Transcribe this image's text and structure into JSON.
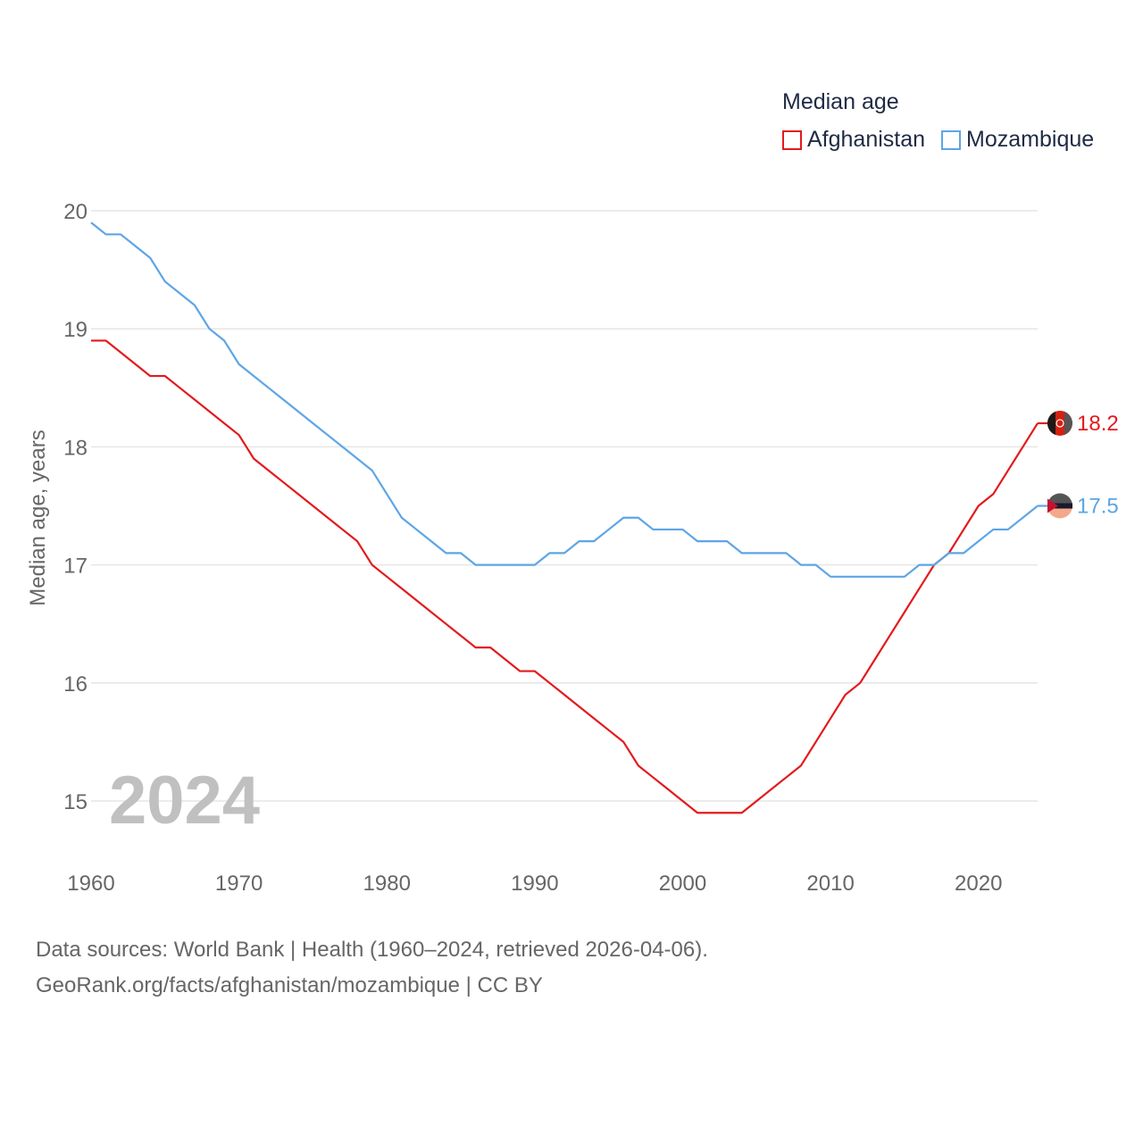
{
  "chart_data": {
    "type": "line",
    "legend_title": "Median age",
    "ylabel": "Median age, years",
    "xlabel": "",
    "year_label": "2024",
    "xlim": [
      1960,
      2024
    ],
    "ylim": [
      14.5,
      20.1
    ],
    "x_ticks": [
      1960,
      1970,
      1980,
      1990,
      2000,
      2010,
      2020
    ],
    "y_ticks": [
      15,
      16,
      17,
      18,
      19,
      20
    ],
    "grid": true,
    "legend_position": "top-right",
    "x": [
      1960,
      1961,
      1962,
      1963,
      1964,
      1965,
      1966,
      1967,
      1968,
      1969,
      1970,
      1971,
      1972,
      1973,
      1974,
      1975,
      1976,
      1977,
      1978,
      1979,
      1980,
      1981,
      1982,
      1983,
      1984,
      1985,
      1986,
      1987,
      1988,
      1989,
      1990,
      1991,
      1992,
      1993,
      1994,
      1995,
      1996,
      1997,
      1998,
      1999,
      2000,
      2001,
      2002,
      2003,
      2004,
      2005,
      2006,
      2007,
      2008,
      2009,
      2010,
      2011,
      2012,
      2013,
      2014,
      2015,
      2016,
      2017,
      2018,
      2019,
      2020,
      2021,
      2022,
      2023,
      2024
    ],
    "series": [
      {
        "name": "Afghanistan",
        "color": "#e31a1c",
        "end_label": "18.2",
        "values": [
          18.9,
          18.9,
          18.8,
          18.7,
          18.6,
          18.6,
          18.5,
          18.4,
          18.3,
          18.2,
          18.1,
          17.9,
          17.8,
          17.7,
          17.6,
          17.5,
          17.4,
          17.3,
          17.2,
          17.0,
          16.9,
          16.8,
          16.7,
          16.6,
          16.5,
          16.4,
          16.3,
          16.3,
          16.2,
          16.1,
          16.1,
          16.0,
          15.9,
          15.8,
          15.7,
          15.6,
          15.5,
          15.3,
          15.2,
          15.1,
          15.0,
          14.9,
          14.9,
          14.9,
          14.9,
          15.0,
          15.1,
          15.2,
          15.3,
          15.5,
          15.7,
          15.9,
          16.0,
          16.2,
          16.4,
          16.6,
          16.8,
          17.0,
          17.1,
          17.3,
          17.5,
          17.6,
          17.8,
          18.0,
          18.2
        ]
      },
      {
        "name": "Mozambique",
        "color": "#5da5e6",
        "end_label": "17.5",
        "values": [
          19.9,
          19.8,
          19.8,
          19.7,
          19.6,
          19.4,
          19.3,
          19.2,
          19.0,
          18.9,
          18.7,
          18.6,
          18.5,
          18.4,
          18.3,
          18.2,
          18.1,
          18.0,
          17.9,
          17.8,
          17.6,
          17.4,
          17.3,
          17.2,
          17.1,
          17.1,
          17.0,
          17.0,
          17.0,
          17.0,
          17.0,
          17.1,
          17.1,
          17.2,
          17.2,
          17.3,
          17.4,
          17.4,
          17.3,
          17.3,
          17.3,
          17.2,
          17.2,
          17.2,
          17.1,
          17.1,
          17.1,
          17.1,
          17.0,
          17.0,
          16.9,
          16.9,
          16.9,
          16.9,
          16.9,
          16.9,
          17.0,
          17.0,
          17.1,
          17.1,
          17.2,
          17.3,
          17.3,
          17.4,
          17.5
        ]
      }
    ]
  },
  "footer": {
    "line1": "Data sources: World Bank | Health (1960–2024, retrieved 2026-04-06).",
    "line2": "GeoRank.org/facts/afghanistan/mozambique | CC BY"
  }
}
